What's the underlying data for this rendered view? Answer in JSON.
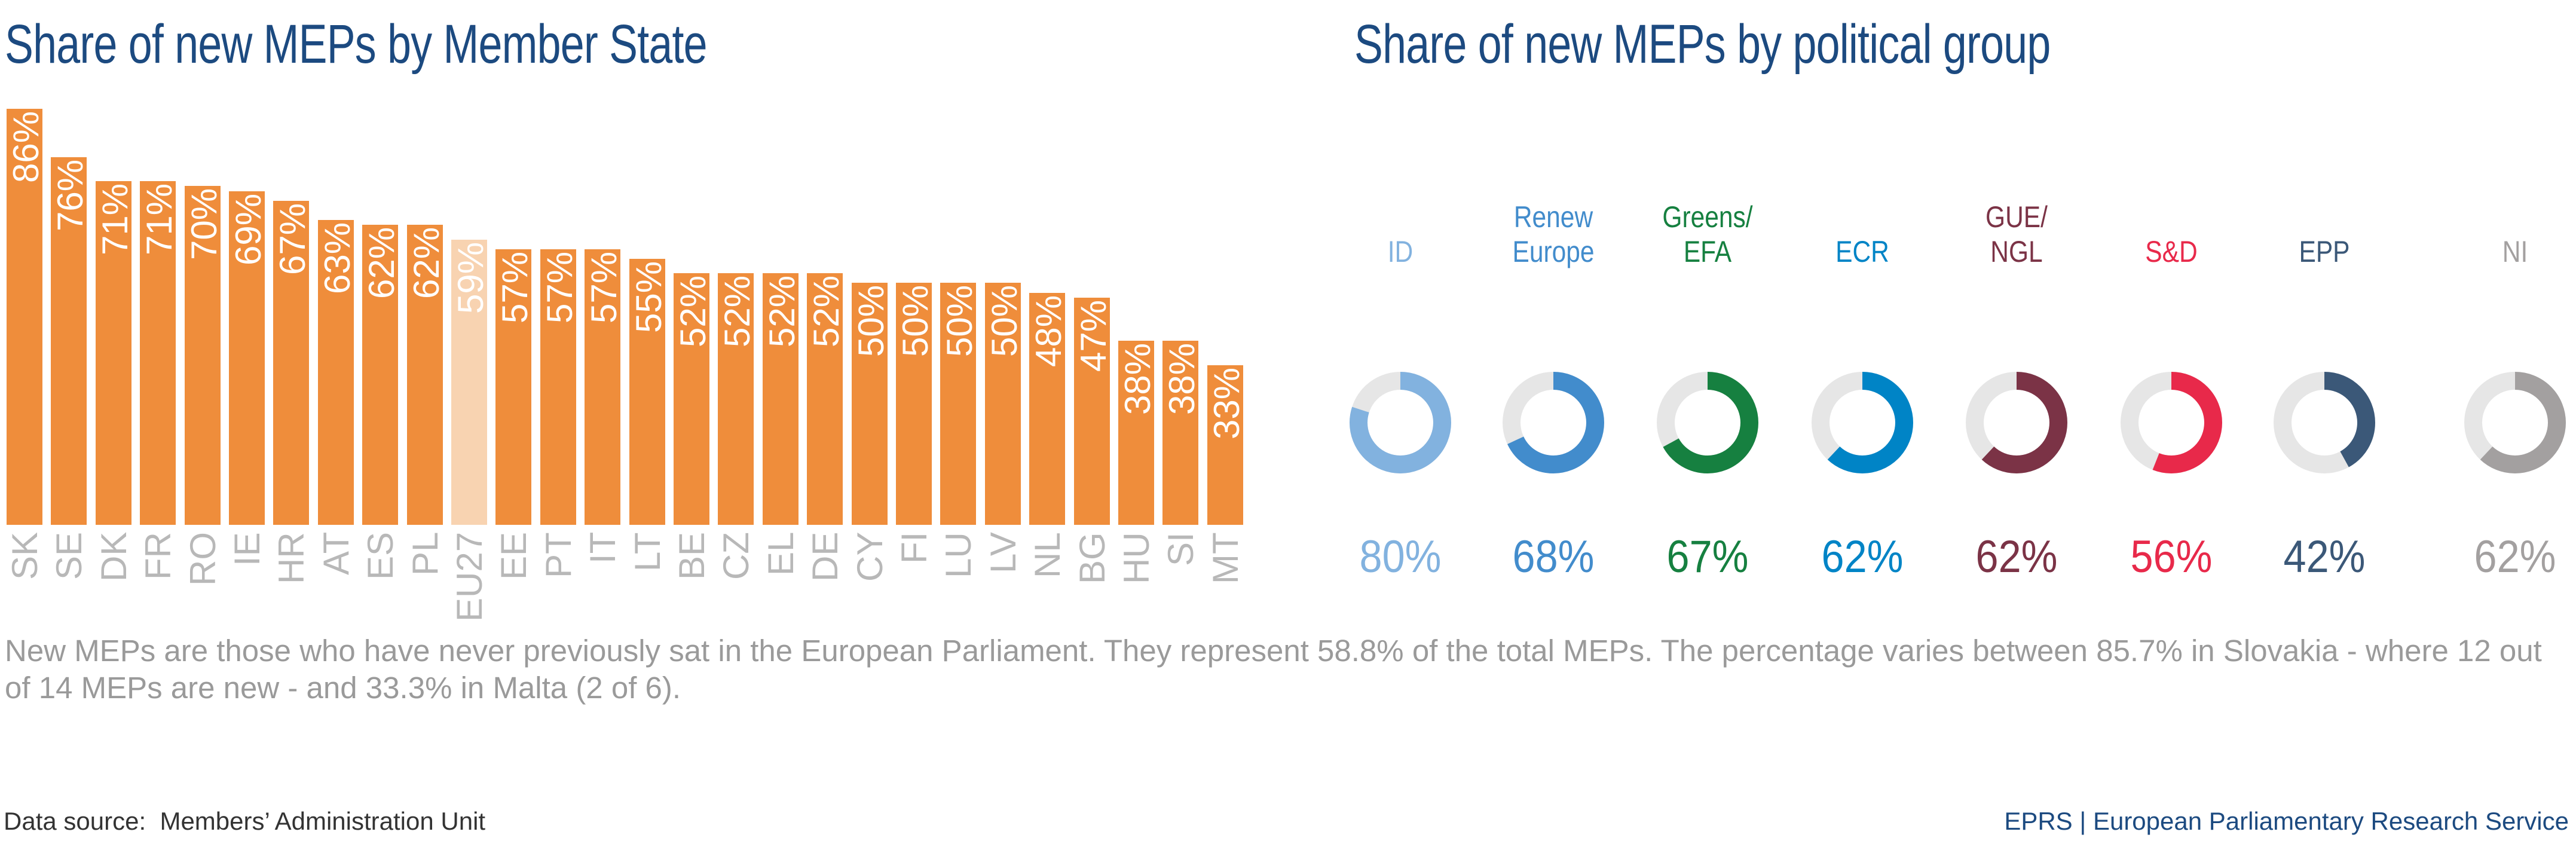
{
  "titles": {
    "left": "Share of new MEPs by Member State",
    "right": "Share of new MEPs by political group"
  },
  "chart_data": [
    {
      "type": "bar",
      "title": "Share of new MEPs by Member State",
      "categories": [
        "SK",
        "SE",
        "DK",
        "FR",
        "RO",
        "IE",
        "HR",
        "AT",
        "ES",
        "PL",
        "EU27",
        "EE",
        "PT",
        "IT",
        "LT",
        "BE",
        "CZ",
        "EL",
        "DE",
        "CY",
        "FI",
        "LU",
        "LV",
        "NL",
        "BG",
        "HU",
        "SI",
        "MT"
      ],
      "values": [
        86,
        76,
        71,
        71,
        70,
        69,
        67,
        63,
        62,
        62,
        59,
        57,
        57,
        57,
        55,
        52,
        52,
        52,
        52,
        50,
        50,
        50,
        50,
        48,
        47,
        38,
        38,
        33
      ],
      "labels": [
        "86%",
        "76%",
        "71%",
        "71%",
        "70%",
        "69%",
        "67%",
        "63%",
        "62%",
        "62%",
        "59%",
        "57%",
        "57%",
        "57%",
        "55%",
        "52%",
        "52%",
        "52%",
        "52%",
        "50%",
        "50%",
        "50%",
        "50%",
        "48%",
        "47%",
        "38%",
        "38%",
        "33%"
      ],
      "unit": "%",
      "ylim": [
        0,
        100
      ],
      "colors": {
        "bar": "#ef8d3b",
        "highlight": "#f8d3b1",
        "highlight_category": "EU27"
      },
      "grid": false
    },
    {
      "type": "pie",
      "variant": "donut",
      "title": "Share of new MEPs by political group",
      "series": [
        {
          "name": "ID",
          "lines": [
            "",
            "ID"
          ],
          "value": 80,
          "label": "80%",
          "color": "#82b2df"
        },
        {
          "name": "Renew Europe",
          "lines": [
            "Renew",
            "Europe"
          ],
          "value": 68,
          "label": "68%",
          "color": "#428ccc"
        },
        {
          "name": "Greens/EFA",
          "lines": [
            "Greens/",
            "EFA"
          ],
          "value": 67,
          "label": "67%",
          "color": "#168040"
        },
        {
          "name": "ECR",
          "lines": [
            "",
            "ECR"
          ],
          "value": 62,
          "label": "62%",
          "color": "#0084c6"
        },
        {
          "name": "GUE/NGL",
          "lines": [
            "GUE/",
            "NGL"
          ],
          "value": 62,
          "label": "62%",
          "color": "#7b3346"
        },
        {
          "name": "S&D",
          "lines": [
            "",
            "S&D"
          ],
          "value": 56,
          "label": "56%",
          "color": "#e8294a"
        },
        {
          "name": "EPP",
          "lines": [
            "",
            "EPP"
          ],
          "value": 42,
          "label": "42%",
          "color": "#3b5878"
        },
        {
          "name": "NI",
          "lines": [
            "",
            "NI"
          ],
          "value": 62,
          "label": "62%",
          "color": "#a3a0a0"
        }
      ],
      "track_color": "#e6e6e6"
    }
  ],
  "caption": "New MEPs are those who have never previously sat in the European Parliament. They represent 58.8% of the total MEPs. The percentage varies between 85.7% in Slovakia - where 12 out of 14 MEPs are new - and 33.3% in Malta (2 of 6).",
  "footer": {
    "source": "Data source:  Members’ Administration Unit",
    "credit": "EPRS | European Parliamentary Research Service"
  }
}
